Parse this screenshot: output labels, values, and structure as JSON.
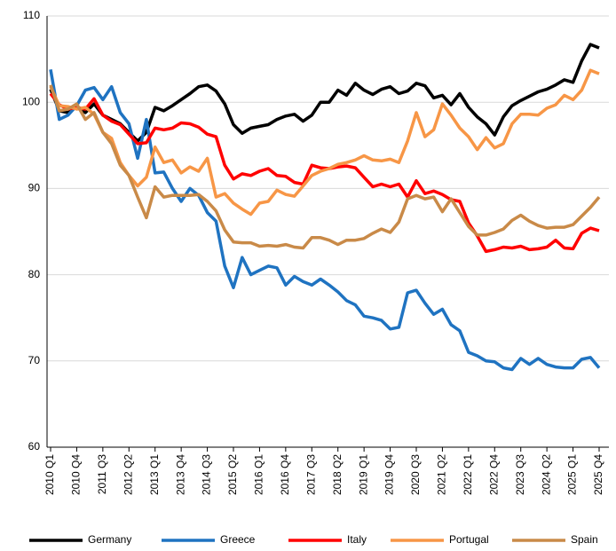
{
  "chart_data": {
    "type": "line",
    "categories": [
      "2010 Q1",
      null,
      null,
      "2010 Q4",
      null,
      null,
      "2011 Q3",
      null,
      null,
      "2012 Q2",
      null,
      null,
      "2013 Q1",
      null,
      null,
      "2013 Q4",
      null,
      null,
      "2014 Q3",
      null,
      null,
      "2015 Q2",
      null,
      null,
      "2016 Q1",
      null,
      null,
      "2016 Q4",
      null,
      null,
      "2017 Q3",
      null,
      null,
      "2018 Q2",
      null,
      null,
      "2019 Q1",
      null,
      null,
      "2019 Q4",
      null,
      null,
      "2020 Q3",
      null,
      null,
      "2021 Q2",
      null,
      null,
      "2022 Q1",
      null,
      null,
      "2022 Q4",
      null,
      null,
      "2023 Q3",
      null,
      null,
      "2024 Q2",
      null,
      null,
      "2025 Q1",
      null,
      null,
      "2025 Q4"
    ],
    "series": [
      {
        "name": "Germany",
        "color": "#000000",
        "values": [
          101.5,
          99,
          98.8,
          99.5,
          98.8,
          99.8,
          98.5,
          98,
          97.5,
          96.5,
          95.5,
          96.5,
          99.4,
          99,
          99.6,
          100.3,
          101,
          101.8,
          102,
          101.3,
          99.8,
          97.4,
          96.4,
          97,
          97.2,
          97.4,
          98,
          98.4,
          98.6,
          97.8,
          98.5,
          100,
          100,
          101.4,
          100.8,
          102.2,
          101.4,
          100.9,
          101.5,
          101.8,
          101,
          101.3,
          102.2,
          101.9,
          100.5,
          100.8,
          99.7,
          101,
          99.4,
          98.3,
          97.5,
          96.2,
          98.3,
          99.6,
          100.2,
          100.7,
          101.2,
          101.5,
          102,
          102.6,
          102.3,
          104.8,
          106.7,
          106.3
        ]
      },
      {
        "name": "Greece",
        "color": "#1f73c1",
        "values": [
          103.8,
          98,
          98.5,
          99.6,
          101.4,
          101.7,
          100.3,
          101.8,
          98.8,
          97.5,
          93.5,
          98,
          91.8,
          91.9,
          90,
          88.5,
          90,
          89.2,
          87.2,
          86.2,
          81,
          78.5,
          82,
          80,
          80.5,
          81,
          80.8,
          78.8,
          79.8,
          79.2,
          78.8,
          79.5,
          78.8,
          78,
          77,
          76.5,
          75.2,
          75,
          74.7,
          73.7,
          73.9,
          77.9,
          78.2,
          76.7,
          75.4,
          76,
          74.2,
          73.5,
          71,
          70.6,
          70,
          69.9,
          69.2,
          69,
          70.3,
          69.6,
          70.3,
          69.6,
          69.3,
          69.2,
          69.2,
          70.2,
          70.4,
          69.2
        ]
      },
      {
        "name": "Italy",
        "color": "#ff0000",
        "values": [
          101,
          99.7,
          99.2,
          99.4,
          99.2,
          100.4,
          98.5,
          97.8,
          97.4,
          96.3,
          95.2,
          95.3,
          97,
          96.8,
          97,
          97.6,
          97.5,
          97.1,
          96.3,
          96,
          92.7,
          91.1,
          91.7,
          91.5,
          92,
          92.3,
          91.5,
          91.4,
          90.7,
          90.5,
          92.7,
          92.4,
          92.3,
          92.5,
          92.6,
          92.4,
          91.3,
          90.2,
          90.5,
          90.2,
          90.5,
          89,
          90.9,
          89.4,
          89.7,
          89.3,
          88.7,
          88.5,
          86,
          84.5,
          82.7,
          82.9,
          83.2,
          83.1,
          83.3,
          82.9,
          83,
          83.2,
          84,
          83.1,
          83,
          84.8,
          85.4,
          85.1
        ]
      },
      {
        "name": "Portugal",
        "color": "#f79646",
        "values": [
          101.8,
          99.6,
          99.5,
          99.2,
          99.4,
          98.6,
          96.5,
          95.8,
          93,
          91.5,
          90.3,
          91.3,
          94.8,
          93,
          93.3,
          91.8,
          92.5,
          92,
          93.5,
          89,
          89.4,
          88.3,
          87.6,
          87,
          88.3,
          88.5,
          89.8,
          89.3,
          89.1,
          90.3,
          91.5,
          92,
          92.3,
          92.8,
          93,
          93.3,
          93.8,
          93.3,
          93.2,
          93.4,
          93,
          95.5,
          98.8,
          96,
          96.8,
          99.8,
          98.5,
          97,
          96,
          94.5,
          95.9,
          94.7,
          95.2,
          97.5,
          98.6,
          98.6,
          98.5,
          99.3,
          99.7,
          100.8,
          100.3,
          101.4,
          103.7,
          103.3
        ]
      },
      {
        "name": "Spain",
        "color": "#c98a48",
        "values": [
          102,
          99,
          99.2,
          99.8,
          98,
          98.8,
          96.5,
          95.2,
          92.7,
          91.5,
          89,
          86.6,
          90.2,
          89,
          89.2,
          89.2,
          89.2,
          89.3,
          88.5,
          87.4,
          85.2,
          83.8,
          83.7,
          83.7,
          83.3,
          83.4,
          83.3,
          83.5,
          83.2,
          83.1,
          84.3,
          84.3,
          84,
          83.5,
          84,
          84,
          84.2,
          84.8,
          85.3,
          84.9,
          86.1,
          88.8,
          89.2,
          88.8,
          89,
          87.3,
          88.8,
          87.2,
          85.6,
          84.6,
          84.6,
          84.9,
          85.3,
          86.3,
          86.9,
          86.2,
          85.7,
          85.4,
          85.5,
          85.5,
          85.8,
          86.8,
          87.8,
          89
        ]
      }
    ],
    "ylim": [
      60,
      110
    ],
    "yticks": [
      60,
      70,
      80,
      90,
      100,
      110
    ],
    "grid": true
  }
}
